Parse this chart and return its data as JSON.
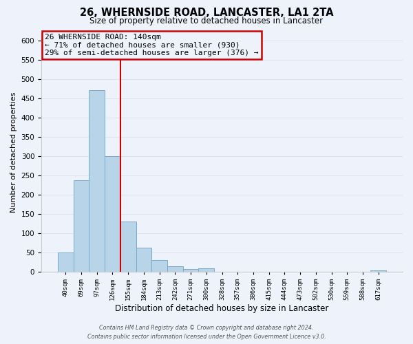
{
  "title": "26, WHERNSIDE ROAD, LANCASTER, LA1 2TA",
  "subtitle": "Size of property relative to detached houses in Lancaster",
  "xlabel": "Distribution of detached houses by size in Lancaster",
  "ylabel": "Number of detached properties",
  "bar_labels": [
    "40sqm",
    "69sqm",
    "97sqm",
    "126sqm",
    "155sqm",
    "184sqm",
    "213sqm",
    "242sqm",
    "271sqm",
    "300sqm",
    "328sqm",
    "357sqm",
    "386sqm",
    "415sqm",
    "444sqm",
    "473sqm",
    "502sqm",
    "530sqm",
    "559sqm",
    "588sqm",
    "617sqm"
  ],
  "bar_values": [
    50,
    238,
    471,
    300,
    130,
    62,
    30,
    15,
    8,
    10,
    0,
    0,
    0,
    0,
    0,
    0,
    0,
    0,
    0,
    0,
    3
  ],
  "bar_color": "#b8d4e8",
  "bar_edge_color": "#7aaac8",
  "vline_x_index": 3,
  "vline_color": "#cc0000",
  "ylim": [
    0,
    620
  ],
  "yticks": [
    0,
    50,
    100,
    150,
    200,
    250,
    300,
    350,
    400,
    450,
    500,
    550,
    600
  ],
  "annotation_title": "26 WHERNSIDE ROAD: 140sqm",
  "annotation_line1": "← 71% of detached houses are smaller (930)",
  "annotation_line2": "29% of semi-detached houses are larger (376) →",
  "footer_line1": "Contains HM Land Registry data © Crown copyright and database right 2024.",
  "footer_line2": "Contains public sector information licensed under the Open Government Licence v3.0.",
  "bg_color": "#eef2fb",
  "grid_color": "#dde4f0",
  "title_fontsize": 10.5,
  "subtitle_fontsize": 8.5,
  "ylabel_fontsize": 8,
  "xlabel_fontsize": 8.5,
  "tick_fontsize": 7.5,
  "xtick_fontsize": 6.5,
  "annotation_fontsize": 8,
  "footer_fontsize": 5.8
}
